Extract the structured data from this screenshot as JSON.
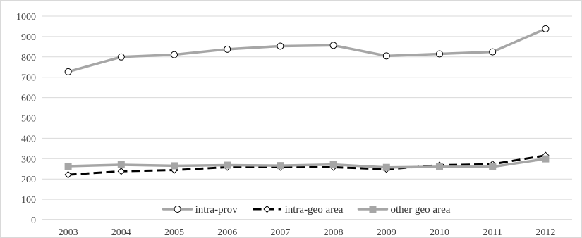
{
  "chart_data": {
    "type": "line",
    "title": "",
    "xlabel": "",
    "ylabel": "",
    "categories": [
      "2003",
      "2004",
      "2005",
      "2006",
      "2007",
      "2008",
      "2009",
      "2010",
      "2011",
      "2012"
    ],
    "ylim": [
      0,
      1000
    ],
    "yticks": [
      0,
      100,
      200,
      300,
      400,
      500,
      600,
      700,
      800,
      900,
      1000
    ],
    "grid": true,
    "legend_position": "bottom-inside",
    "series": [
      {
        "name": "intra-prov",
        "values": [
          727,
          800,
          811,
          838,
          853,
          857,
          805,
          815,
          825,
          938
        ],
        "color": "#a6a6a6",
        "line_style": "solid",
        "marker": "circle"
      },
      {
        "name": "intra-geo area",
        "values": [
          221,
          238,
          244,
          258,
          258,
          258,
          248,
          268,
          273,
          316
        ],
        "color": "#000000",
        "line_style": "dashed",
        "marker": "diamond"
      },
      {
        "name": "other geo area",
        "values": [
          263,
          270,
          265,
          268,
          266,
          271,
          257,
          260,
          260,
          299
        ],
        "color": "#a6a6a6",
        "line_style": "solid",
        "marker": "square"
      }
    ]
  }
}
